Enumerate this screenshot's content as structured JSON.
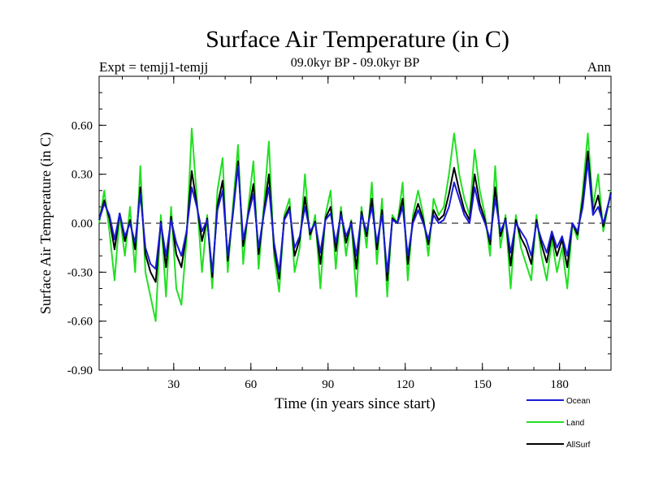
{
  "chart_data": {
    "type": "line",
    "title": "Surface Air Temperature (in C)",
    "subtitle": "09.0kyr BP - 09.0kyr BP",
    "left_label": "Expt = temjj1-temjj",
    "right_label": "Ann",
    "xlabel": "Time (in years since start)",
    "ylabel": "Surface Air Temperature (in C)",
    "xlim": [
      1,
      200
    ],
    "ylim": [
      -0.9,
      0.9
    ],
    "x_ticks": [
      30,
      60,
      90,
      120,
      150,
      180
    ],
    "x_tick_labels": [
      "30",
      "60",
      "90",
      "120",
      "150",
      "180"
    ],
    "y_ticks": [
      -0.9,
      -0.6,
      -0.3,
      0.0,
      0.3,
      0.6
    ],
    "y_tick_labels": [
      "-0.90",
      "-0.60",
      "-0.30",
      "0.00",
      "0.30",
      "0.60"
    ],
    "reference_line": 0.0,
    "colors": {
      "ocean": "#1a1ad6",
      "land": "#22e022",
      "allsurf": "#000000",
      "axis": "#000000"
    },
    "series": [
      {
        "name": "Ocean",
        "color": "#1a1ad6",
        "x": [
          1,
          3,
          5,
          7,
          9,
          11,
          13,
          15,
          17,
          19,
          21,
          23,
          25,
          27,
          29,
          31,
          33,
          35,
          37,
          39,
          41,
          43,
          45,
          47,
          49,
          51,
          53,
          55,
          57,
          59,
          61,
          63,
          65,
          67,
          69,
          71,
          73,
          75,
          77,
          79,
          81,
          83,
          85,
          87,
          89,
          91,
          93,
          95,
          97,
          99,
          101,
          103,
          105,
          107,
          109,
          111,
          113,
          115,
          117,
          119,
          121,
          123,
          125,
          127,
          129,
          131,
          133,
          135,
          137,
          139,
          141,
          143,
          145,
          147,
          149,
          151,
          153,
          155,
          157,
          159,
          161,
          163,
          165,
          167,
          169,
          171,
          173,
          175,
          177,
          179,
          181,
          183,
          185,
          187,
          189,
          191,
          193,
          195,
          197,
          200
        ],
        "values": [
          0.02,
          0.12,
          0.05,
          -0.1,
          0.06,
          -0.08,
          0.0,
          -0.12,
          0.18,
          -0.15,
          -0.25,
          -0.28,
          0.0,
          -0.2,
          0.02,
          -0.12,
          -0.2,
          -0.05,
          0.22,
          0.1,
          -0.05,
          0.02,
          -0.3,
          0.08,
          0.2,
          -0.2,
          0.05,
          0.35,
          -0.1,
          0.05,
          0.18,
          -0.15,
          0.05,
          0.22,
          -0.12,
          -0.3,
          0.02,
          0.08,
          -0.15,
          -0.08,
          0.1,
          -0.05,
          0.0,
          -0.18,
          0.02,
          0.06,
          -0.12,
          0.05,
          -0.08,
          0.0,
          -0.2,
          0.05,
          -0.05,
          0.1,
          -0.12,
          0.05,
          -0.3,
          0.02,
          0.0,
          0.1,
          -0.2,
          0.0,
          0.08,
          0.0,
          -0.1,
          0.05,
          0.0,
          0.02,
          0.1,
          0.25,
          0.15,
          0.05,
          0.0,
          0.22,
          0.08,
          0.0,
          -0.1,
          0.15,
          -0.05,
          0.02,
          -0.18,
          0.0,
          -0.05,
          -0.1,
          -0.2,
          0.0,
          -0.1,
          -0.18,
          -0.05,
          -0.15,
          -0.08,
          -0.2,
          0.0,
          -0.05,
          0.1,
          0.38,
          0.05,
          0.1,
          0.0,
          0.18
        ]
      },
      {
        "name": "Land",
        "color": "#22e022",
        "x": [
          1,
          3,
          5,
          7,
          9,
          11,
          13,
          15,
          17,
          19,
          21,
          23,
          25,
          27,
          29,
          31,
          33,
          35,
          37,
          39,
          41,
          43,
          45,
          47,
          49,
          51,
          53,
          55,
          57,
          59,
          61,
          63,
          65,
          67,
          69,
          71,
          73,
          75,
          77,
          79,
          81,
          83,
          85,
          87,
          89,
          91,
          93,
          95,
          97,
          99,
          101,
          103,
          105,
          107,
          109,
          111,
          113,
          115,
          117,
          119,
          121,
          123,
          125,
          127,
          129,
          131,
          133,
          135,
          137,
          139,
          141,
          143,
          145,
          147,
          149,
          151,
          153,
          155,
          157,
          159,
          161,
          163,
          165,
          167,
          169,
          171,
          173,
          175,
          177,
          179,
          181,
          183,
          185,
          187,
          189,
          191,
          193,
          195,
          197,
          200
        ],
        "values": [
          0.0,
          0.2,
          -0.05,
          -0.35,
          0.05,
          -0.2,
          0.1,
          -0.3,
          0.35,
          -0.3,
          -0.45,
          -0.6,
          0.05,
          -0.45,
          0.1,
          -0.4,
          -0.5,
          -0.1,
          0.58,
          0.15,
          -0.3,
          0.05,
          -0.4,
          0.2,
          0.4,
          -0.3,
          0.1,
          0.48,
          -0.25,
          0.1,
          0.38,
          -0.28,
          0.1,
          0.5,
          -0.2,
          -0.42,
          0.05,
          0.15,
          -0.3,
          -0.15,
          0.3,
          -0.1,
          0.05,
          -0.4,
          0.05,
          0.2,
          -0.28,
          0.1,
          -0.2,
          0.02,
          -0.45,
          0.1,
          -0.15,
          0.25,
          -0.25,
          0.15,
          -0.45,
          0.05,
          0.0,
          0.25,
          -0.35,
          0.05,
          0.2,
          0.05,
          -0.2,
          0.15,
          0.05,
          0.1,
          0.3,
          0.55,
          0.3,
          0.15,
          0.05,
          0.45,
          0.2,
          0.05,
          -0.2,
          0.35,
          -0.15,
          0.05,
          -0.4,
          0.05,
          -0.15,
          -0.25,
          -0.35,
          0.05,
          -0.2,
          -0.35,
          -0.1,
          -0.3,
          -0.15,
          -0.4,
          0.0,
          -0.1,
          0.2,
          0.55,
          0.1,
          0.3,
          -0.05,
          0.2
        ]
      },
      {
        "name": "AllSurf",
        "color": "#000000",
        "x": [
          1,
          3,
          5,
          7,
          9,
          11,
          13,
          15,
          17,
          19,
          21,
          23,
          25,
          27,
          29,
          31,
          33,
          35,
          37,
          39,
          41,
          43,
          45,
          47,
          49,
          51,
          53,
          55,
          57,
          59,
          61,
          63,
          65,
          67,
          69,
          71,
          73,
          75,
          77,
          79,
          81,
          83,
          85,
          87,
          89,
          91,
          93,
          95,
          97,
          99,
          101,
          103,
          105,
          107,
          109,
          111,
          113,
          115,
          117,
          119,
          121,
          123,
          125,
          127,
          129,
          131,
          133,
          135,
          137,
          139,
          141,
          143,
          145,
          147,
          149,
          151,
          153,
          155,
          157,
          159,
          161,
          163,
          165,
          167,
          169,
          171,
          173,
          175,
          177,
          179,
          181,
          183,
          185,
          187,
          189,
          191,
          193,
          195,
          197,
          200
        ],
        "values": [
          0.02,
          0.14,
          0.03,
          -0.16,
          0.06,
          -0.11,
          0.02,
          -0.16,
          0.22,
          -0.19,
          -0.3,
          -0.36,
          0.01,
          -0.27,
          0.04,
          -0.19,
          -0.27,
          -0.06,
          0.32,
          0.11,
          -0.11,
          0.03,
          -0.33,
          0.11,
          0.26,
          -0.23,
          0.06,
          0.38,
          -0.14,
          0.06,
          0.24,
          -0.19,
          0.06,
          0.3,
          -0.15,
          -0.34,
          0.03,
          0.1,
          -0.2,
          -0.1,
          0.16,
          -0.07,
          0.01,
          -0.25,
          0.03,
          0.1,
          -0.17,
          0.07,
          -0.12,
          0.01,
          -0.28,
          0.07,
          -0.08,
          0.15,
          -0.16,
          0.08,
          -0.35,
          0.03,
          0.0,
          0.15,
          -0.25,
          0.02,
          0.12,
          0.02,
          -0.13,
          0.08,
          0.02,
          0.05,
          0.18,
          0.34,
          0.2,
          0.08,
          0.02,
          0.3,
          0.12,
          0.02,
          -0.13,
          0.22,
          -0.08,
          0.03,
          -0.26,
          0.02,
          -0.09,
          -0.15,
          -0.25,
          0.02,
          -0.13,
          -0.24,
          -0.07,
          -0.2,
          -0.1,
          -0.27,
          0.0,
          -0.07,
          0.14,
          0.44,
          0.07,
          0.17,
          -0.02,
          0.19
        ]
      }
    ]
  }
}
